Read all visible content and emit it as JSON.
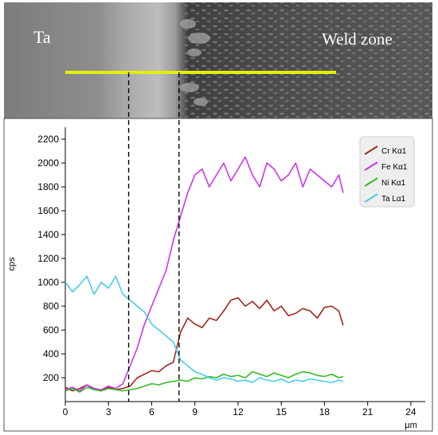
{
  "micrograph": {
    "label_left": "Ta",
    "label_right": "Weld zone"
  },
  "chart_data": {
    "type": "line",
    "title": "",
    "xlabel": "µm",
    "ylabel": "cps",
    "xlim": [
      0,
      25
    ],
    "ylim": [
      0,
      2300
    ],
    "xticks": [
      0,
      3,
      6,
      9,
      12,
      15,
      18,
      21,
      24
    ],
    "yticks": [
      200,
      400,
      600,
      800,
      1000,
      1200,
      1400,
      1600,
      1800,
      2000,
      2200
    ],
    "grid": false,
    "legend_position": "top-right",
    "boundary_markers_x": [
      4.4,
      7.9
    ],
    "series": [
      {
        "name": "Cr Kα1",
        "color": "#a0281a",
        "x": [
          0,
          0.5,
          1,
          1.5,
          2,
          2.5,
          3,
          3.5,
          4,
          4.5,
          5,
          5.5,
          6,
          6.5,
          7,
          7.5,
          8,
          8.5,
          9,
          9.5,
          10,
          10.5,
          11,
          11.5,
          12,
          12.5,
          13,
          13.5,
          14,
          14.5,
          15,
          15.5,
          16,
          16.5,
          17,
          17.5,
          18,
          18.5,
          19,
          19.3
        ],
        "values": [
          120,
          90,
          110,
          140,
          100,
          90,
          120,
          100,
          110,
          130,
          200,
          230,
          260,
          250,
          300,
          330,
          580,
          700,
          650,
          620,
          700,
          680,
          760,
          850,
          870,
          800,
          840,
          780,
          850,
          760,
          800,
          720,
          740,
          780,
          760,
          700,
          790,
          800,
          760,
          640
        ]
      },
      {
        "name": "Fe Kα1",
        "color": "#cc33ee",
        "x": [
          0,
          0.5,
          1,
          1.5,
          2,
          2.5,
          3,
          3.5,
          4,
          4.5,
          5,
          5.5,
          6,
          6.5,
          7,
          7.5,
          8,
          8.5,
          9,
          9.5,
          10,
          10.5,
          11,
          11.5,
          12,
          12.5,
          13,
          13.5,
          14,
          14.5,
          15,
          15.5,
          16,
          16.5,
          17,
          17.5,
          18,
          18.5,
          19,
          19.3
        ],
        "values": [
          100,
          120,
          90,
          140,
          110,
          100,
          130,
          110,
          150,
          300,
          450,
          650,
          800,
          950,
          1100,
          1350,
          1550,
          1750,
          1900,
          1950,
          1800,
          1900,
          2000,
          1850,
          1950,
          2050,
          1900,
          1800,
          2000,
          1950,
          1850,
          1900,
          2000,
          1800,
          1950,
          1900,
          1850,
          1800,
          1900,
          1750
        ]
      },
      {
        "name": "Ni Kα1",
        "color": "#33bb22",
        "x": [
          0,
          0.5,
          1,
          1.5,
          2,
          2.5,
          3,
          3.5,
          4,
          4.5,
          5,
          5.5,
          6,
          6.5,
          7,
          7.5,
          8,
          8.5,
          9,
          9.5,
          10,
          10.5,
          11,
          11.5,
          12,
          12.5,
          13,
          13.5,
          14,
          14.5,
          15,
          15.5,
          16,
          16.5,
          17,
          17.5,
          18,
          18.5,
          19,
          19.3
        ],
        "values": [
          90,
          110,
          80,
          120,
          100,
          90,
          110,
          100,
          90,
          100,
          110,
          130,
          150,
          140,
          160,
          170,
          180,
          170,
          200,
          190,
          210,
          200,
          230,
          210,
          220,
          200,
          250,
          230,
          210,
          240,
          220,
          200,
          230,
          250,
          240,
          220,
          210,
          230,
          200,
          210
        ]
      },
      {
        "name": "Ta Lα1",
        "color": "#44ccee",
        "x": [
          0,
          0.5,
          1,
          1.5,
          2,
          2.5,
          3,
          3.5,
          4,
          4.5,
          5,
          5.5,
          6,
          6.5,
          7,
          7.5,
          8,
          8.5,
          9,
          9.5,
          10,
          10.5,
          11,
          11.5,
          12,
          12.5,
          13,
          13.5,
          14,
          14.5,
          15,
          15.5,
          16,
          16.5,
          17,
          17.5,
          18,
          18.5,
          19,
          19.3
        ],
        "values": [
          1000,
          920,
          980,
          1050,
          900,
          1000,
          950,
          1050,
          900,
          850,
          800,
          750,
          650,
          600,
          550,
          500,
          350,
          300,
          250,
          230,
          200,
          180,
          200,
          190,
          170,
          180,
          160,
          200,
          180,
          170,
          190,
          160,
          180,
          170,
          190,
          180,
          170,
          160,
          180,
          170
        ]
      }
    ]
  }
}
